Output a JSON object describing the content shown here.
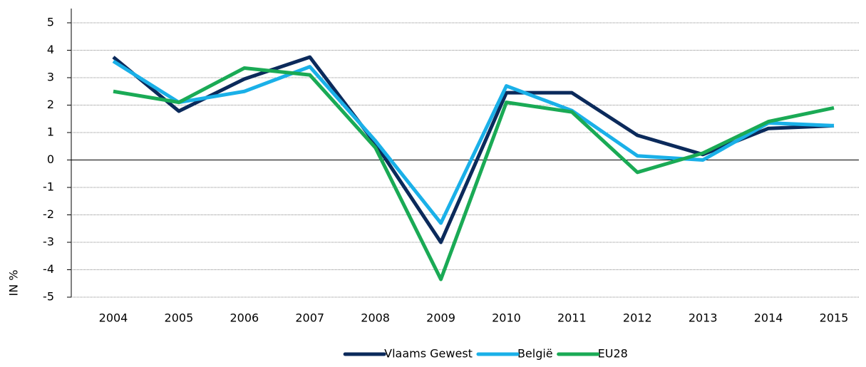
{
  "chart_data": {
    "type": "line",
    "y_label": "IN %",
    "categories": [
      "2004",
      "2005",
      "2006",
      "2007",
      "2008",
      "2009",
      "2010",
      "2011",
      "2012",
      "2013",
      "2014",
      "2015"
    ],
    "series": [
      {
        "name": "Vlaams Gewest",
        "color": "#0b2a5b",
        "values": [
          3.75,
          1.78,
          2.95,
          3.75,
          0.6,
          -3.0,
          2.45,
          2.45,
          0.9,
          0.2,
          1.15,
          1.25
        ]
      },
      {
        "name": "België",
        "color": "#1ab0e8",
        "values": [
          3.6,
          2.1,
          2.5,
          3.4,
          0.7,
          -2.3,
          2.7,
          1.8,
          0.15,
          0.0,
          1.35,
          1.25
        ]
      },
      {
        "name": "EU28",
        "color": "#1aaa55",
        "values": [
          2.5,
          2.1,
          3.35,
          3.1,
          0.45,
          -4.35,
          2.1,
          1.75,
          -0.45,
          0.25,
          1.4,
          1.9
        ]
      }
    ],
    "ylim": [
      -5,
      5
    ],
    "yticks": [
      -5,
      -4,
      -3,
      -2,
      -1,
      0,
      1,
      2,
      3,
      4,
      5
    ],
    "grid": true,
    "legend": "bottom"
  }
}
